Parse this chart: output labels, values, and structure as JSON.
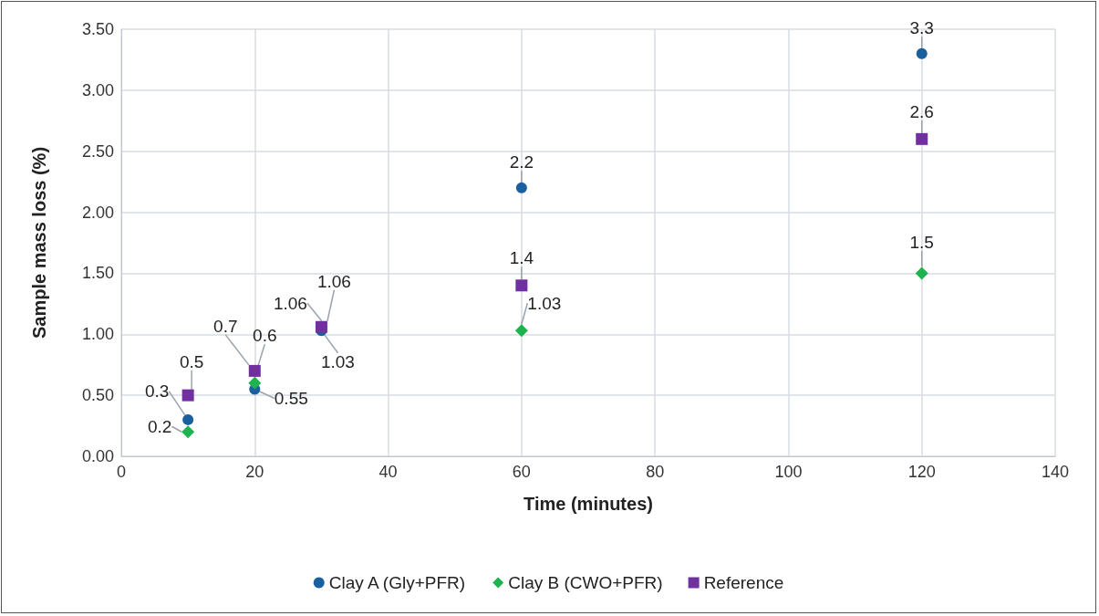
{
  "chart_data": {
    "type": "scatter",
    "xlabel": "Time (minutes)",
    "ylabel": "Sample mass loss (%)",
    "x": [
      10,
      20,
      30,
      60,
      120
    ],
    "series": [
      {
        "name": "Clay A (Gly+PFR)",
        "color": "#1a5fa0",
        "marker": "circle",
        "values": [
          0.3,
          0.55,
          1.03,
          2.2,
          3.3
        ]
      },
      {
        "name": "Clay B (CWO+PFR)",
        "color": "#1db34e",
        "marker": "diamond",
        "values": [
          0.2,
          0.6,
          1.06,
          1.03,
          1.5
        ]
      },
      {
        "name": "Reference",
        "color": "#7030a0",
        "marker": "square",
        "values": [
          0.5,
          0.7,
          1.06,
          1.4,
          2.6
        ]
      }
    ],
    "xlim": [
      0,
      140
    ],
    "xticks": [
      0,
      20,
      40,
      60,
      80,
      100,
      120,
      140
    ],
    "ylim": [
      0,
      3.5
    ],
    "yticks": [
      {
        "value": 0,
        "label": "0.00"
      },
      {
        "value": 0.5,
        "label": "0.50"
      },
      {
        "value": 1,
        "label": "1.00"
      },
      {
        "value": 1.5,
        "label": "1.50"
      },
      {
        "value": 2,
        "label": "2.00"
      },
      {
        "value": 2.5,
        "label": "2.50"
      },
      {
        "value": 3,
        "label": "3.00"
      },
      {
        "value": 3.5,
        "label": "3.50"
      }
    ],
    "grid": true,
    "legend": "bottom",
    "data_labels": true
  }
}
